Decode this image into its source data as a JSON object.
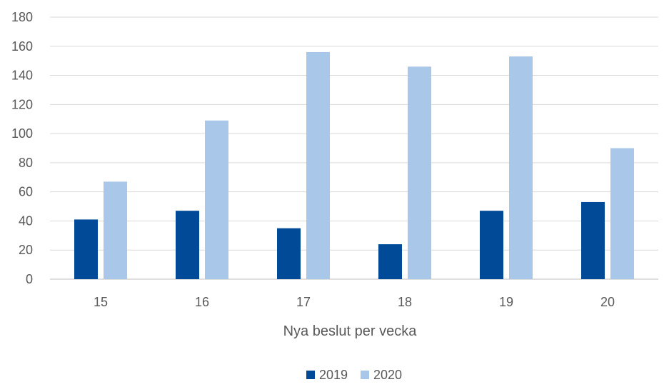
{
  "chart_data": {
    "type": "bar",
    "title": "",
    "xlabel": "Nya beslut per vecka",
    "ylabel": "",
    "categories": [
      "15",
      "16",
      "17",
      "18",
      "19",
      "20"
    ],
    "series": [
      {
        "name": "2019",
        "values": [
          41,
          47,
          35,
          24,
          47,
          53
        ],
        "color": "#004a98"
      },
      {
        "name": "2020",
        "values": [
          67,
          109,
          156,
          146,
          153,
          90
        ],
        "color": "#a9c7e9"
      }
    ],
    "ylim": [
      0,
      180
    ],
    "yticks": [
      0,
      20,
      40,
      60,
      80,
      100,
      120,
      140,
      160,
      180
    ],
    "grid": true,
    "legend_position": "bottom-center"
  }
}
